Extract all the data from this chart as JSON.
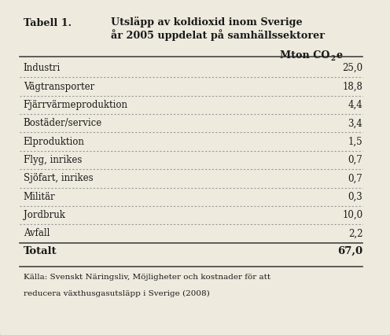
{
  "title_label": "Tabell 1.",
  "title_text_line1": "Utsläpp av koldioxid inom Sverige",
  "title_text_line2": "år 2005 uppdelat på samhällssektorer",
  "col_header_main": "Mton CO",
  "col_header_sub": "2",
  "col_header_suffix": "e",
  "rows": [
    [
      "Industri",
      "25,0"
    ],
    [
      "Vägtransporter",
      "18,8"
    ],
    [
      "Fjärrvärmeproduktion",
      "4,4"
    ],
    [
      "Bostäder/service",
      "3,4"
    ],
    [
      "Elproduktion",
      "1,5"
    ],
    [
      "Flyg, inrikes",
      "0,7"
    ],
    [
      "Sjöfart, inrikes",
      "0,7"
    ],
    [
      "Militär",
      "0,3"
    ],
    [
      "Jordbruk",
      "10,0"
    ],
    [
      "Avfall",
      "2,2"
    ]
  ],
  "total_label": "Totalt",
  "total_value": "67,0",
  "footnote_line1": "Källa: Svenskt Näringsliv, Möjligheter och kostnader för att",
  "footnote_line2": "reducera växthusgasutsläpp i Sverige (2008)",
  "bg_color": "#eeeade",
  "border_color": "#c0bdb5",
  "text_color": "#1a1a1a",
  "dot_line_color": "#999999",
  "solid_line_color": "#444444"
}
